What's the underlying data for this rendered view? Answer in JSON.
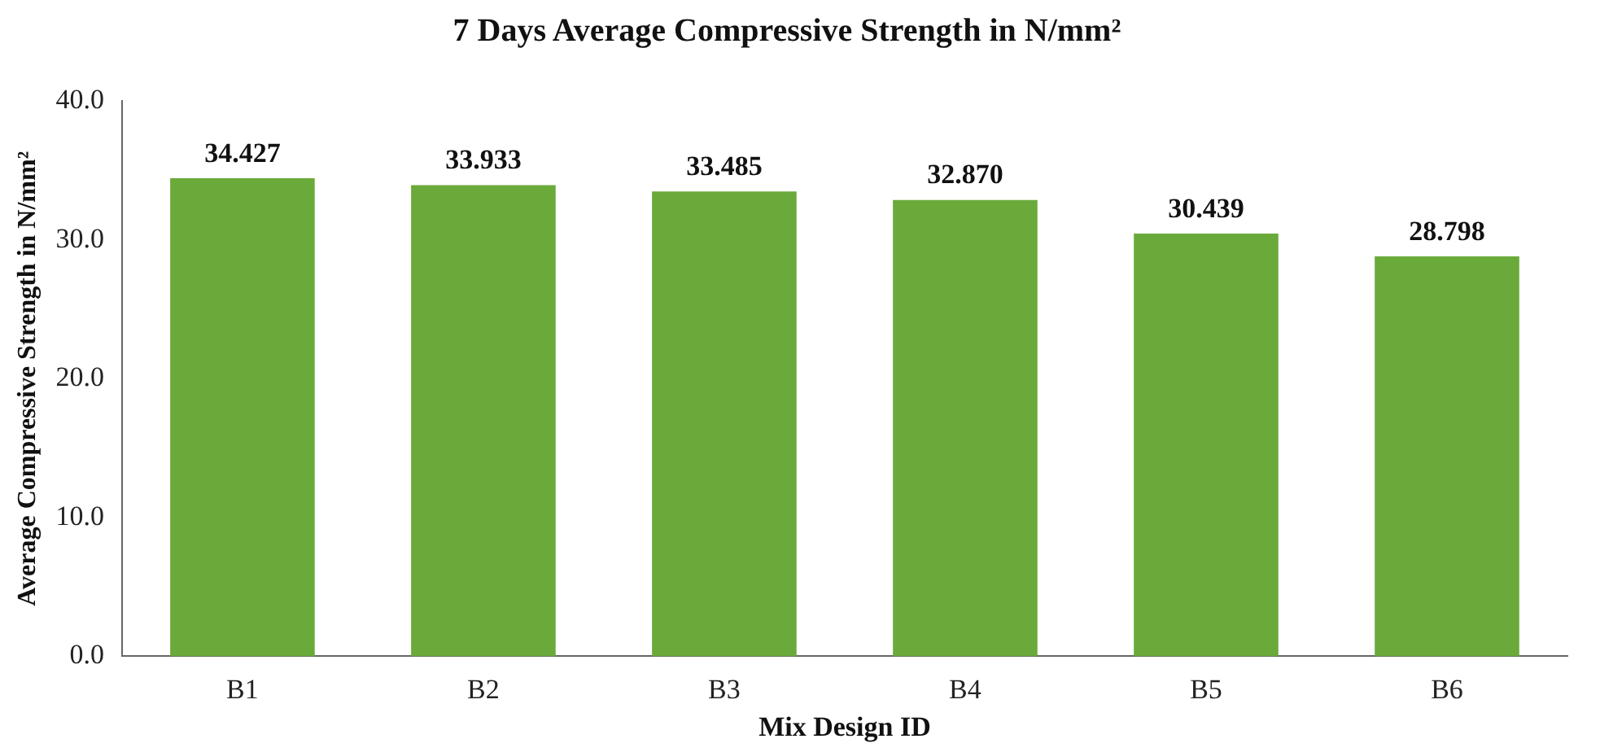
{
  "chart_data": {
    "type": "bar",
    "title": "7 Days Average Compressive Strength in N/mm²",
    "xlabel": "Mix Design ID",
    "ylabel": "Average Compressive Strength in N/mm²",
    "categories": [
      "B1",
      "B2",
      "B3",
      "B4",
      "B5",
      "B6"
    ],
    "values": [
      34.427,
      33.933,
      33.485,
      32.87,
      30.439,
      28.798
    ],
    "color": "#6aaa3a",
    "ylim": [
      0,
      40
    ],
    "yticks": [
      {
        "value": 0,
        "label": "0.0"
      },
      {
        "value": 10,
        "label": "10.0"
      },
      {
        "value": 20,
        "label": "20.0"
      },
      {
        "value": 30,
        "label": "30.0"
      },
      {
        "value": 40,
        "label": "40.0"
      }
    ],
    "value_labels": [
      "34.427",
      "33.933",
      "33.485",
      "32.870",
      "30.439",
      "28.798"
    ],
    "grid": false,
    "legend": false
  }
}
